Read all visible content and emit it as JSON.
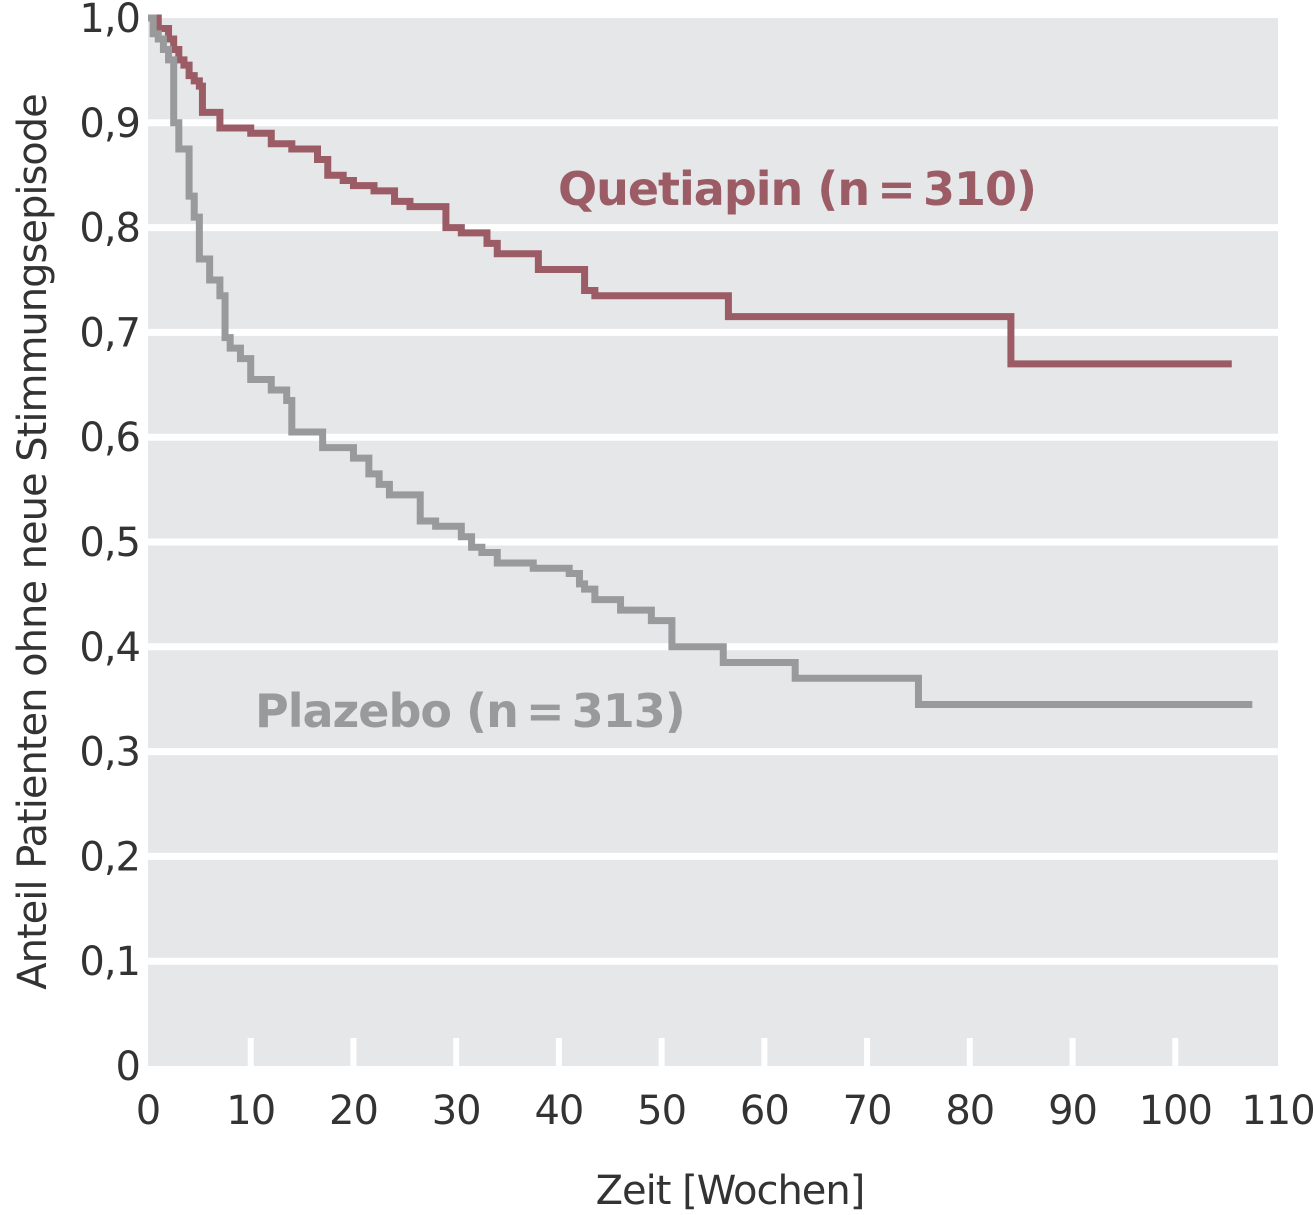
{
  "chart_data": {
    "type": "line",
    "xlabel": "Zeit [Wochen]",
    "ylabel": "Anteil Patienten ohne neue Stimmungsepisode",
    "xlim": [
      0,
      110
    ],
    "ylim": [
      0,
      1.0
    ],
    "x_ticks": [
      0,
      10,
      20,
      30,
      40,
      50,
      60,
      70,
      80,
      90,
      100,
      110
    ],
    "x_tick_labels": [
      "0",
      "10",
      "20",
      "30",
      "40",
      "50",
      "60",
      "70",
      "80",
      "90",
      "100",
      "110"
    ],
    "y_ticks": [
      0,
      0.1,
      0.2,
      0.3,
      0.4,
      0.5,
      0.6,
      0.7,
      0.8,
      0.9,
      1.0
    ],
    "y_tick_labels": [
      "0",
      "0,1",
      "0,2",
      "0,3",
      "0,4",
      "0,5",
      "0,6",
      "0,7",
      "0,8",
      "0,9",
      "1,0"
    ],
    "grid": true,
    "background": "#e6e7e9",
    "step": true,
    "series": [
      {
        "name": "Quetiapin (n = 310)",
        "color": "#9b5c66",
        "x": [
          0,
          1,
          2,
          2.5,
          3,
          3.5,
          4,
          4.5,
          5,
          5.3,
          7,
          10,
          12,
          14,
          16.5,
          17.5,
          19,
          20,
          22,
          24,
          25.5,
          29,
          30.5,
          33,
          34,
          38,
          42.5,
          43.5,
          56.5,
          84,
          105.5
        ],
        "y": [
          1.0,
          0.99,
          0.98,
          0.97,
          0.96,
          0.955,
          0.945,
          0.94,
          0.935,
          0.91,
          0.895,
          0.89,
          0.88,
          0.875,
          0.865,
          0.85,
          0.845,
          0.84,
          0.835,
          0.825,
          0.82,
          0.8,
          0.795,
          0.785,
          0.775,
          0.76,
          0.74,
          0.735,
          0.715,
          0.67,
          0.67
        ]
      },
      {
        "name": "Plazebo (n = 313)",
        "color": "#999a9c",
        "x": [
          0,
          0.5,
          1,
          1.5,
          2,
          2.5,
          3,
          4,
          4.5,
          5,
          6,
          7,
          7.5,
          8,
          9,
          10,
          12,
          13.5,
          14,
          17,
          20,
          21.5,
          22.5,
          23.5,
          26.5,
          28,
          30.5,
          31.5,
          32.5,
          34,
          37.5,
          41,
          42,
          42.5,
          43.5,
          46,
          49,
          51,
          56,
          63,
          75,
          107.5
        ],
        "y": [
          1.0,
          0.985,
          0.98,
          0.97,
          0.96,
          0.9,
          0.875,
          0.83,
          0.81,
          0.77,
          0.75,
          0.735,
          0.695,
          0.685,
          0.675,
          0.655,
          0.645,
          0.635,
          0.605,
          0.59,
          0.58,
          0.565,
          0.555,
          0.545,
          0.52,
          0.515,
          0.505,
          0.495,
          0.49,
          0.48,
          0.475,
          0.47,
          0.46,
          0.455,
          0.445,
          0.435,
          0.425,
          0.4,
          0.385,
          0.37,
          0.345,
          0.345
        ]
      }
    ],
    "annotations": [
      {
        "text": "Quetiapin (n = 310)",
        "series": 0
      },
      {
        "text": "Plazebo (n = 313)",
        "series": 1
      }
    ]
  }
}
